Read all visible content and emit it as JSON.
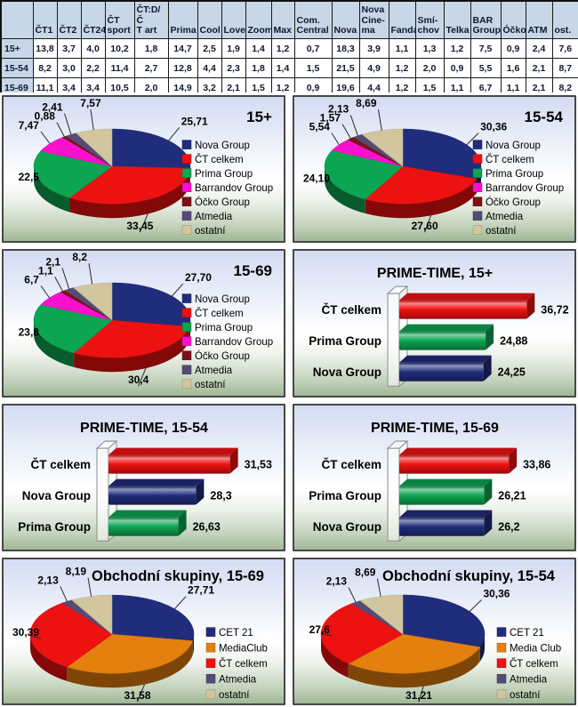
{
  "table": {
    "header_bg": "#c7d7e8",
    "columns": [
      "ČT1",
      "ČT2",
      "ČT24",
      "ČT\nsport",
      "ČT:D/Č\nT art",
      "Prima",
      "Cool",
      "Love",
      "Zoom",
      "Max",
      "Com.\nCentral",
      "Nova",
      "Nova\nCine-\nma",
      "Fanda",
      "Smí-\nchov",
      "Telka",
      "BAR\nGroup",
      "Óčko",
      "ATM",
      "ost."
    ],
    "rows": [
      {
        "label": "15+",
        "values": [
          "13,8",
          "3,7",
          "4,0",
          "10,2",
          "1,8",
          "14,7",
          "2,5",
          "1,9",
          "1,4",
          "1,2",
          "0,7",
          "18,3",
          "3,9",
          "1,1",
          "1,3",
          "1,2",
          "7,5",
          "0,9",
          "2,4",
          "7,6"
        ]
      },
      {
        "label": "15-54",
        "values": [
          "8,2",
          "3,0",
          "2,2",
          "11,4",
          "2,7",
          "12,8",
          "4,4",
          "2,3",
          "1,8",
          "1,4",
          "1,5",
          "21,5",
          "4,9",
          "1,2",
          "2,0",
          "0,9",
          "5,5",
          "1,6",
          "2,1",
          "8,7"
        ]
      },
      {
        "label": "15-69",
        "values": [
          "11,1",
          "3,4",
          "3,4",
          "10,5",
          "2,0",
          "14,9",
          "3,2",
          "2,1",
          "1,5",
          "1,2",
          "0,9",
          "19,6",
          "4,4",
          "1,2",
          "1,5",
          "1,1",
          "6,7",
          "1,1",
          "2,1",
          "8,2"
        ]
      }
    ]
  },
  "chart_data": [
    {
      "id": "pie_15plus",
      "type": "pie",
      "title": "15+",
      "labels": [
        "Nova Group",
        "ČT celkem",
        "Prima Group",
        "Barrandov Group",
        "Óčko Group",
        "Atmedia",
        "ostatní"
      ],
      "values": [
        25.71,
        33.45,
        22.5,
        7.47,
        0.88,
        2.41,
        7.57
      ],
      "value_labels": [
        "25,71",
        "33,45",
        "22,5",
        "7,47",
        "0,88",
        "2,41",
        "7,57"
      ],
      "colors": [
        "#202c7c",
        "#ee1111",
        "#0ca551",
        "#f911ce",
        "#7c1216",
        "#564b74",
        "#d1c69d"
      ],
      "legend_position": "right"
    },
    {
      "id": "pie_1554",
      "type": "pie",
      "title": "15-54",
      "labels": [
        "Nova Group",
        "ČT celkem",
        "Prima Group",
        "Barrandov Group",
        "Óčko Group",
        "Atmedia",
        "ostatní"
      ],
      "values": [
        30.36,
        27.6,
        24.1,
        5.54,
        1.57,
        2.13,
        8.69
      ],
      "value_labels": [
        "30,36",
        "27,60",
        "24,10",
        "5,54",
        "1,57",
        "2,13",
        "8,69"
      ],
      "colors": [
        "#202c7c",
        "#ee1111",
        "#0ca551",
        "#f911ce",
        "#7c1216",
        "#564b74",
        "#d1c69d"
      ],
      "legend_position": "right"
    },
    {
      "id": "pie_1569",
      "type": "pie",
      "title": "15-69",
      "labels": [
        "Nova Group",
        "ČT celkem",
        "Prima Group",
        "Barrandov Group",
        "Óčko Group",
        "Atmedia",
        "ostatní"
      ],
      "values": [
        27.7,
        30.4,
        23.8,
        6.7,
        1.1,
        2.1,
        8.2
      ],
      "value_labels": [
        "27,70",
        "30,4",
        "23,8",
        "6,7",
        "1,1",
        "2,1",
        "8,2"
      ],
      "colors": [
        "#202c7c",
        "#ee1111",
        "#0ca551",
        "#f911ce",
        "#7c1216",
        "#564b74",
        "#d1c69d"
      ],
      "legend_position": "right"
    },
    {
      "id": "bar_pt15plus",
      "type": "bar",
      "title": "PRIME-TIME, 15+",
      "categories": [
        "ČT celkem",
        "Prima Group",
        "Nova Group"
      ],
      "values": [
        36.72,
        24.88,
        24.25
      ],
      "value_labels": [
        "36,72",
        "24,88",
        "24,25"
      ],
      "colors": [
        "#ee1111",
        "#0ca551",
        "#202c7c"
      ],
      "xlim": [
        0,
        41
      ],
      "grid": false,
      "legend": false
    },
    {
      "id": "bar_pt1554",
      "type": "bar",
      "title": "PRIME-TIME, 15-54",
      "categories": [
        "ČT celkem",
        "Nova Group",
        "Prima Group"
      ],
      "values": [
        31.53,
        28.3,
        26.63
      ],
      "value_labels": [
        "31,53",
        "28,3",
        "26,63"
      ],
      "colors": [
        "#ee1111",
        "#202c7c",
        "#0ca551"
      ],
      "xlim": [
        20,
        33.5
      ],
      "grid": false,
      "legend": false
    },
    {
      "id": "bar_pt1569",
      "type": "bar",
      "title": "PRIME-TIME, 15-69",
      "categories": [
        "ČT celkem",
        "Prima Group",
        "Nova Group"
      ],
      "values": [
        33.86,
        26.21,
        26.2
      ],
      "value_labels": [
        "33,86",
        "26,21",
        "26,2"
      ],
      "colors": [
        "#ee1111",
        "#0ca551",
        "#202c7c"
      ],
      "xlim": [
        0,
        44
      ],
      "grid": false,
      "legend": false
    },
    {
      "id": "pie_obch1569",
      "type": "pie",
      "title": "Obchodní skupiny, 15-69",
      "labels": [
        "CET 21",
        "MediaClub",
        "ČT celkem",
        "Atmedia",
        "ostatní"
      ],
      "values": [
        27.71,
        31.58,
        30.39,
        2.13,
        8.19
      ],
      "value_labels": [
        "27,71",
        "31,58",
        "30,39",
        "2,13",
        "8,19"
      ],
      "colors": [
        "#202c7c",
        "#e3800e",
        "#ee1111",
        "#564b74",
        "#d1c69d"
      ],
      "legend_position": "right"
    },
    {
      "id": "pie_obch1554",
      "type": "pie",
      "title": "Obchodní skupiny, 15-54",
      "labels": [
        "CET 21",
        "Media Club",
        "ČT celkem",
        "Atmedia",
        "ostatní"
      ],
      "values": [
        30.36,
        31.21,
        27.6,
        2.13,
        8.69
      ],
      "value_labels": [
        "30,36",
        "31,21",
        "27,6",
        "2,13",
        "8,69"
      ],
      "colors": [
        "#202c7c",
        "#e3800e",
        "#ee1111",
        "#564b74",
        "#d1c69d"
      ],
      "legend_position": "right"
    }
  ]
}
